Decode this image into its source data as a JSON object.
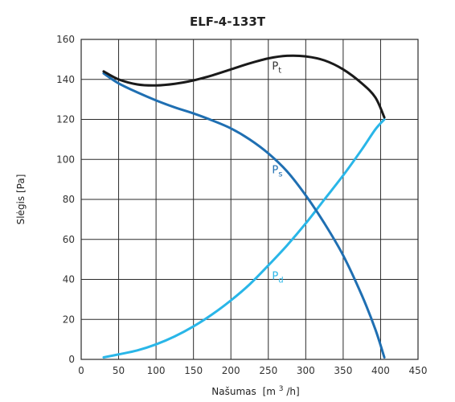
{
  "chart_data": {
    "type": "line",
    "title": "ELF-4-133T",
    "xlabel_main": "Našumas",
    "xlabel_unit_open": "[m",
    "xlabel_unit_sup": "3",
    "xlabel_unit_close": "/h]",
    "ylabel_main": "Slėgis",
    "ylabel_unit": "[Pa]",
    "xlim": [
      0,
      450
    ],
    "ylim": [
      0,
      160
    ],
    "xticks": [
      0,
      50,
      100,
      150,
      200,
      250,
      300,
      350,
      400,
      450
    ],
    "yticks": [
      0,
      20,
      40,
      60,
      80,
      100,
      120,
      140,
      160
    ],
    "grid": true,
    "series": [
      {
        "id": "pt",
        "label_main": "P",
        "label_sub": "t",
        "color": "#1a1a1a",
        "label_at": [
          255,
          145
        ],
        "x": [
          30,
          50,
          75,
          100,
          125,
          150,
          175,
          200,
          225,
          250,
          275,
          300,
          325,
          350,
          375,
          393,
          405
        ],
        "y": [
          144,
          140,
          137.5,
          137,
          137.8,
          139.5,
          142,
          145,
          148,
          150.5,
          151.8,
          151.5,
          149.5,
          145,
          138,
          131,
          121
        ]
      },
      {
        "id": "ps",
        "label_main": "P",
        "label_sub": "s",
        "color": "#1f6fb2",
        "label_at": [
          255,
          93
        ],
        "x": [
          30,
          50,
          75,
          100,
          125,
          150,
          175,
          200,
          225,
          250,
          275,
          300,
          325,
          350,
          375,
          393,
          405
        ],
        "y": [
          143,
          138,
          133.5,
          129.5,
          126,
          123,
          119.5,
          115.5,
          110,
          103,
          94,
          82,
          68,
          52,
          32,
          15,
          1
        ]
      },
      {
        "id": "pd",
        "label_main": "P",
        "label_sub": "d",
        "color": "#29b6e8",
        "label_at": [
          255,
          40
        ],
        "x": [
          30,
          50,
          75,
          100,
          125,
          150,
          175,
          200,
          225,
          250,
          275,
          300,
          325,
          350,
          375,
          393,
          405
        ],
        "y": [
          1,
          2.5,
          4.5,
          7.5,
          11.5,
          16.5,
          22.5,
          29.5,
          37.5,
          47,
          57,
          68,
          80,
          92,
          105,
          115,
          120
        ]
      }
    ]
  }
}
